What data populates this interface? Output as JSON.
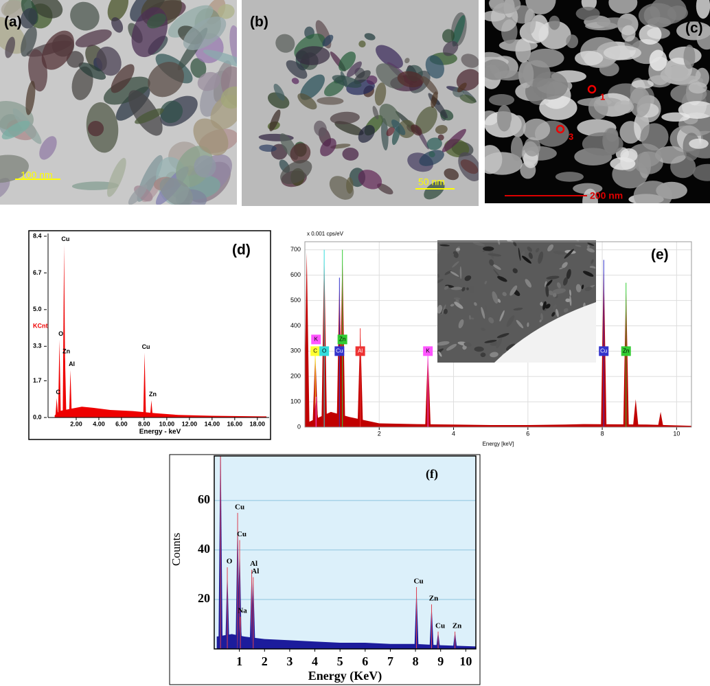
{
  "images": [
    {
      "label": "(a)",
      "scale_bar": "100 nm"
    },
    {
      "label": "(b)",
      "scale_bar": "50 nm"
    },
    {
      "label": "(c)",
      "scale_bar": "200 nm",
      "markers": [
        "1",
        "3"
      ]
    }
  ],
  "chart_data": [
    {
      "type": "area",
      "panel": "(d)",
      "x_label": "Energy - keV",
      "y_label": "KCnt",
      "color": "#ee0000",
      "xlim": [
        0,
        18.8
      ],
      "ylim": [
        0,
        8.4
      ],
      "xticks": [
        {
          "value": 2,
          "label": "2.00"
        },
        {
          "value": 4,
          "label": "4.00"
        },
        {
          "value": 6,
          "label": "6.00"
        },
        {
          "value": 8,
          "label": "8.00"
        },
        {
          "value": 10,
          "label": "10.00"
        },
        {
          "value": 12,
          "label": "12.00"
        },
        {
          "value": 14,
          "label": "14.00"
        },
        {
          "value": 16,
          "label": "16.00"
        },
        {
          "value": 18,
          "label": "18.00"
        }
      ],
      "yticks": [
        {
          "value": 0,
          "label": "0.0"
        },
        1.7,
        3.3,
        {
          "value": 5,
          "label": "5.0"
        },
        6.7,
        8.4
      ],
      "x": [
        0.1,
        0.5,
        1.5,
        2.5,
        3.5,
        5,
        7,
        9,
        11,
        14,
        18.8
      ],
      "values": [
        0.1,
        0.3,
        0.4,
        0.5,
        0.45,
        0.35,
        0.3,
        0.2,
        0.12,
        0.08,
        0.05
      ],
      "peaks": {
        "labels": [
          "C",
          "O",
          "Cu",
          "Zn",
          "Al",
          "Cu",
          "Zn"
        ],
        "x": [
          0.28,
          0.52,
          0.93,
          1.01,
          1.49,
          8.04,
          8.64
        ],
        "values": [
          0.9,
          3.6,
          8.0,
          2.8,
          2.2,
          3.0,
          0.8
        ]
      }
    },
    {
      "type": "area",
      "panel": "(e)",
      "x_label": "Energy [keV]",
      "y_label": "x 0.001 cps/eV",
      "color": "#c00000",
      "grid": true,
      "xlim": [
        0,
        10.4
      ],
      "ylim": [
        0,
        732
      ],
      "xticks": [
        2,
        4,
        6,
        8,
        10
      ],
      "yticks": [
        0,
        100,
        200,
        300,
        400,
        500,
        600,
        700
      ],
      "x": [
        0.1,
        0.7,
        1.2,
        2,
        3,
        4,
        5,
        6,
        7,
        7.5,
        9.2,
        10.4
      ],
      "values": [
        20,
        60,
        40,
        15,
        12,
        10,
        8,
        8,
        10,
        12,
        10,
        5
      ],
      "peaks": {
        "labels": [
          null,
          "C",
          "K",
          "O",
          "Cu",
          "Zn",
          "Al",
          "K",
          "Cu",
          "Zn",
          null,
          null
        ],
        "x": [
          0.05,
          0.28,
          0.3,
          0.52,
          0.93,
          1.01,
          1.49,
          3.31,
          8.04,
          8.64,
          8.9,
          9.57
        ],
        "values": [
          690,
          300,
          120,
          700,
          590,
          700,
          390,
          300,
          660,
          570,
          110,
          60
        ],
        "colors": [
          null,
          "#ffff33",
          "#ff55ff",
          "#33dddd",
          "#3333cc",
          "#33cc33",
          "#ee3333",
          "#ff55ff",
          "#3333cc",
          "#33cc33",
          null,
          null
        ]
      }
    },
    {
      "type": "area",
      "panel": "(f)",
      "x_label": "Energy (KeV)",
      "y_label": "Counts",
      "color": "#1c1c9c",
      "background": "#dcf0fa",
      "grid": true,
      "xlim": [
        0,
        10.4
      ],
      "ylim": [
        0,
        78
      ],
      "xticks": [
        1,
        2,
        3,
        4,
        5,
        6,
        7,
        8,
        9,
        10
      ],
      "yticks": [
        20,
        40,
        60
      ],
      "x": [
        0.1,
        0.7,
        1.2,
        2,
        3,
        4,
        5,
        6,
        7,
        8,
        9,
        10.4
      ],
      "values": [
        5,
        6,
        5,
        4,
        3.5,
        3,
        2.5,
        2.5,
        2,
        2,
        1.5,
        1
      ],
      "peaks": {
        "labels": [
          null,
          "O",
          "Cu",
          "Cu",
          "Na",
          "Al",
          "Al",
          "Cu",
          "Zn",
          "Cu",
          "Zn"
        ],
        "x": [
          0.25,
          0.52,
          0.93,
          1.01,
          1.04,
          1.49,
          1.55,
          8.04,
          8.64,
          8.9,
          9.57
        ],
        "values": [
          90,
          33,
          55,
          44,
          13,
          32,
          29,
          25,
          18,
          7,
          7
        ]
      }
    }
  ]
}
